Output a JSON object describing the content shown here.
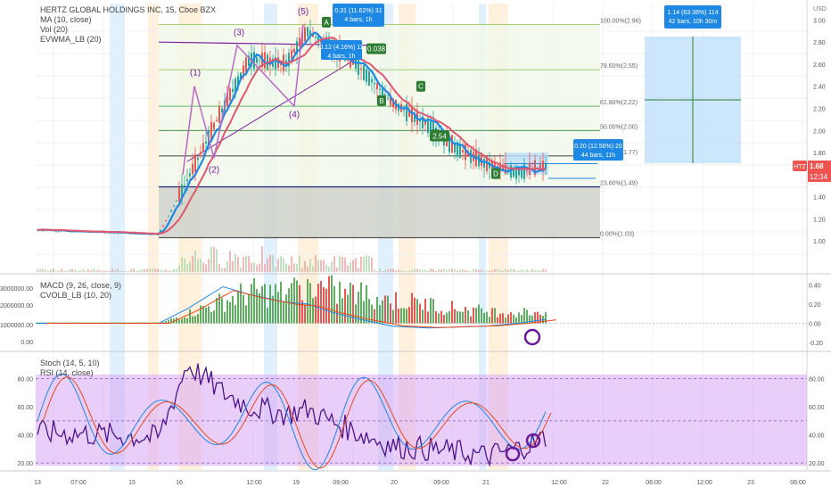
{
  "header": {
    "title": "HERTZ GLOBAL HOLDINGS INC, 15, Cboe BZX",
    "indicators": [
      "MA (10, close)",
      "Vol (20)",
      "EVWMA_LB (20)"
    ]
  },
  "macd_panel": {
    "labels": [
      "MACD (9, 26, close, 9)",
      "CVOLB_LB (10, 20)"
    ],
    "left_ticks": [
      "3000000.00",
      "2000000.00",
      "1000000.00",
      "0.00"
    ],
    "right_ticks": [
      "0.40",
      "0.20",
      "0.00",
      "-0.20"
    ]
  },
  "stoch_panel": {
    "labels": [
      "Stoch (14, 5, 10)",
      "RSI (14, close)"
    ],
    "left_ticks": [
      "80.00",
      "60.00",
      "40.00",
      "20.00"
    ],
    "right_ticks": [
      "80.00",
      "60.00",
      "40.00",
      "20.00"
    ]
  },
  "time_axis": [
    "13",
    "07:00",
    "15",
    "16",
    "12:00",
    "19",
    "09:00",
    "20",
    "09:00",
    "21",
    "12:00",
    "22",
    "06:00",
    "12:00",
    "23",
    "06:00"
  ],
  "currency": "USD",
  "price_label": {
    "ticker": "HTZ",
    "price": "1.68",
    "countdown": "12:34"
  },
  "fib_levels": [
    "100.00%(2.96)",
    "78.60%(2.55)",
    "61.80%(2.22)",
    "50.00%(2.00)",
    "38.20%(1.77)",
    "23.60%(1.49)",
    "0.00%(1.03)"
  ],
  "wave_labels": [
    "(1)",
    "(2)",
    "(3)",
    "(4)",
    "(5)",
    "A",
    "B",
    "C",
    "D",
    "E",
    "0.038",
    "2.54"
  ],
  "measure_boxes": [
    {
      "line1": "0.31 (11.62%) 31",
      "line2": "4 bars, 1h"
    },
    {
      "line1": "0.12 (4.16%) 11",
      "line2": "4 bars, 1h"
    },
    {
      "line1": "1.14 (63.38%) 114",
      "line2": "42 bars, 10h 30m"
    },
    {
      "line1": "0.20 (12.56%) 20",
      "line2": "44 bars, 11h"
    }
  ],
  "colors": {
    "candle_up": "#26a69a",
    "candle_down": "#ef5350",
    "ma": "#1e88e5",
    "evwma": "#e0576f",
    "wave_line": "#9c27b0",
    "rsi_band": "#d9a6f5",
    "highlight_blue": "#bbdefb",
    "highlight_orange": "#ffe0b2"
  },
  "chart_data": {
    "type": "line",
    "title": "HERTZ GLOBAL HOLDINGS INC, 15, Cboe BZX",
    "xlabel": "",
    "ylabel": "USD",
    "ylim": [
      0.8,
      3.1
    ],
    "x": [
      "13",
      "15",
      "16 08:00",
      "16 10:00",
      "16 12:00",
      "16 14:00",
      "19 00:00",
      "19 04:00",
      "19 08:00",
      "19 12:00",
      "20 00:00",
      "20 06:00",
      "20 10:00",
      "21 00:00",
      "21 06:00",
      "21 10:00"
    ],
    "series": [
      {
        "name": "Close",
        "values": [
          1.1,
          1.08,
          1.06,
          1.55,
          2.2,
          2.65,
          2.6,
          2.9,
          2.75,
          2.6,
          2.25,
          2.05,
          1.85,
          1.7,
          1.62,
          1.68
        ]
      }
    ],
    "panels": {
      "macd": {
        "ylim": [
          -0.2,
          0.45
        ],
        "series": [
          {
            "name": "MACD (9, 26, close, 9)",
            "values": [
              0.0,
              0.0,
              0.0,
              0.15,
              0.38,
              0.3,
              0.22,
              0.2,
              0.12,
              0.05,
              -0.03,
              -0.05,
              -0.04,
              -0.03,
              0.0,
              0.04
            ]
          }
        ]
      },
      "oscillators": {
        "ylim": [
          15,
          95
        ],
        "series": [
          {
            "name": "RSI (14, close)",
            "values": [
              42,
              40,
              38,
              90,
              70,
              60,
              55,
              58,
              50,
              42,
              32,
              30,
              28,
              25,
              30,
              38
            ]
          }
        ]
      }
    }
  }
}
